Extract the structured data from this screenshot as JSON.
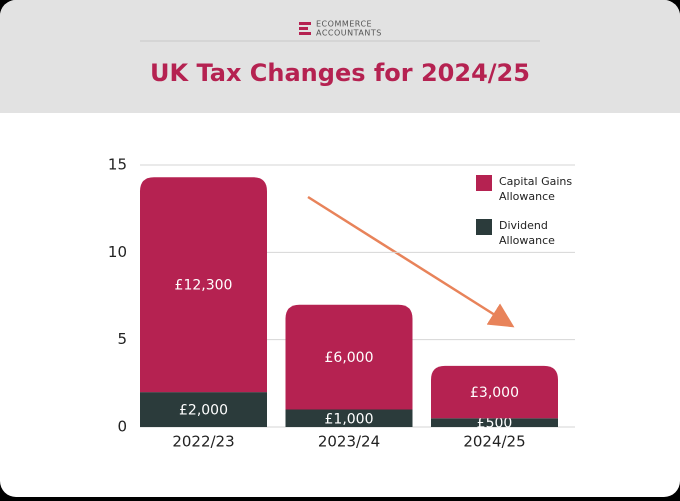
{
  "brand": {
    "line1": "ECOMMERCE",
    "line2": "ACCOUNTANTS"
  },
  "chart_data": {
    "type": "bar",
    "stacked": true,
    "title": "UK Tax Changes for 2024/25",
    "categories": [
      "2022/23",
      "2023/24",
      "2024/25"
    ],
    "series": [
      {
        "name": "Dividend Allowance",
        "color": "#2b3b3b",
        "values": [
          2,
          1,
          0.5
        ],
        "value_labels": [
          "£2,000",
          "£1,000",
          "£500"
        ]
      },
      {
        "name": "Capital Gains Allowance",
        "color": "#b52251",
        "values": [
          12.3,
          6,
          3
        ],
        "value_labels": [
          "£12,300",
          "£6,000",
          "£3,000"
        ]
      }
    ],
    "ylim": [
      0,
      15
    ],
    "yticks": [
      0,
      5,
      10,
      15
    ],
    "grid": true,
    "legend": "upper right"
  }
}
